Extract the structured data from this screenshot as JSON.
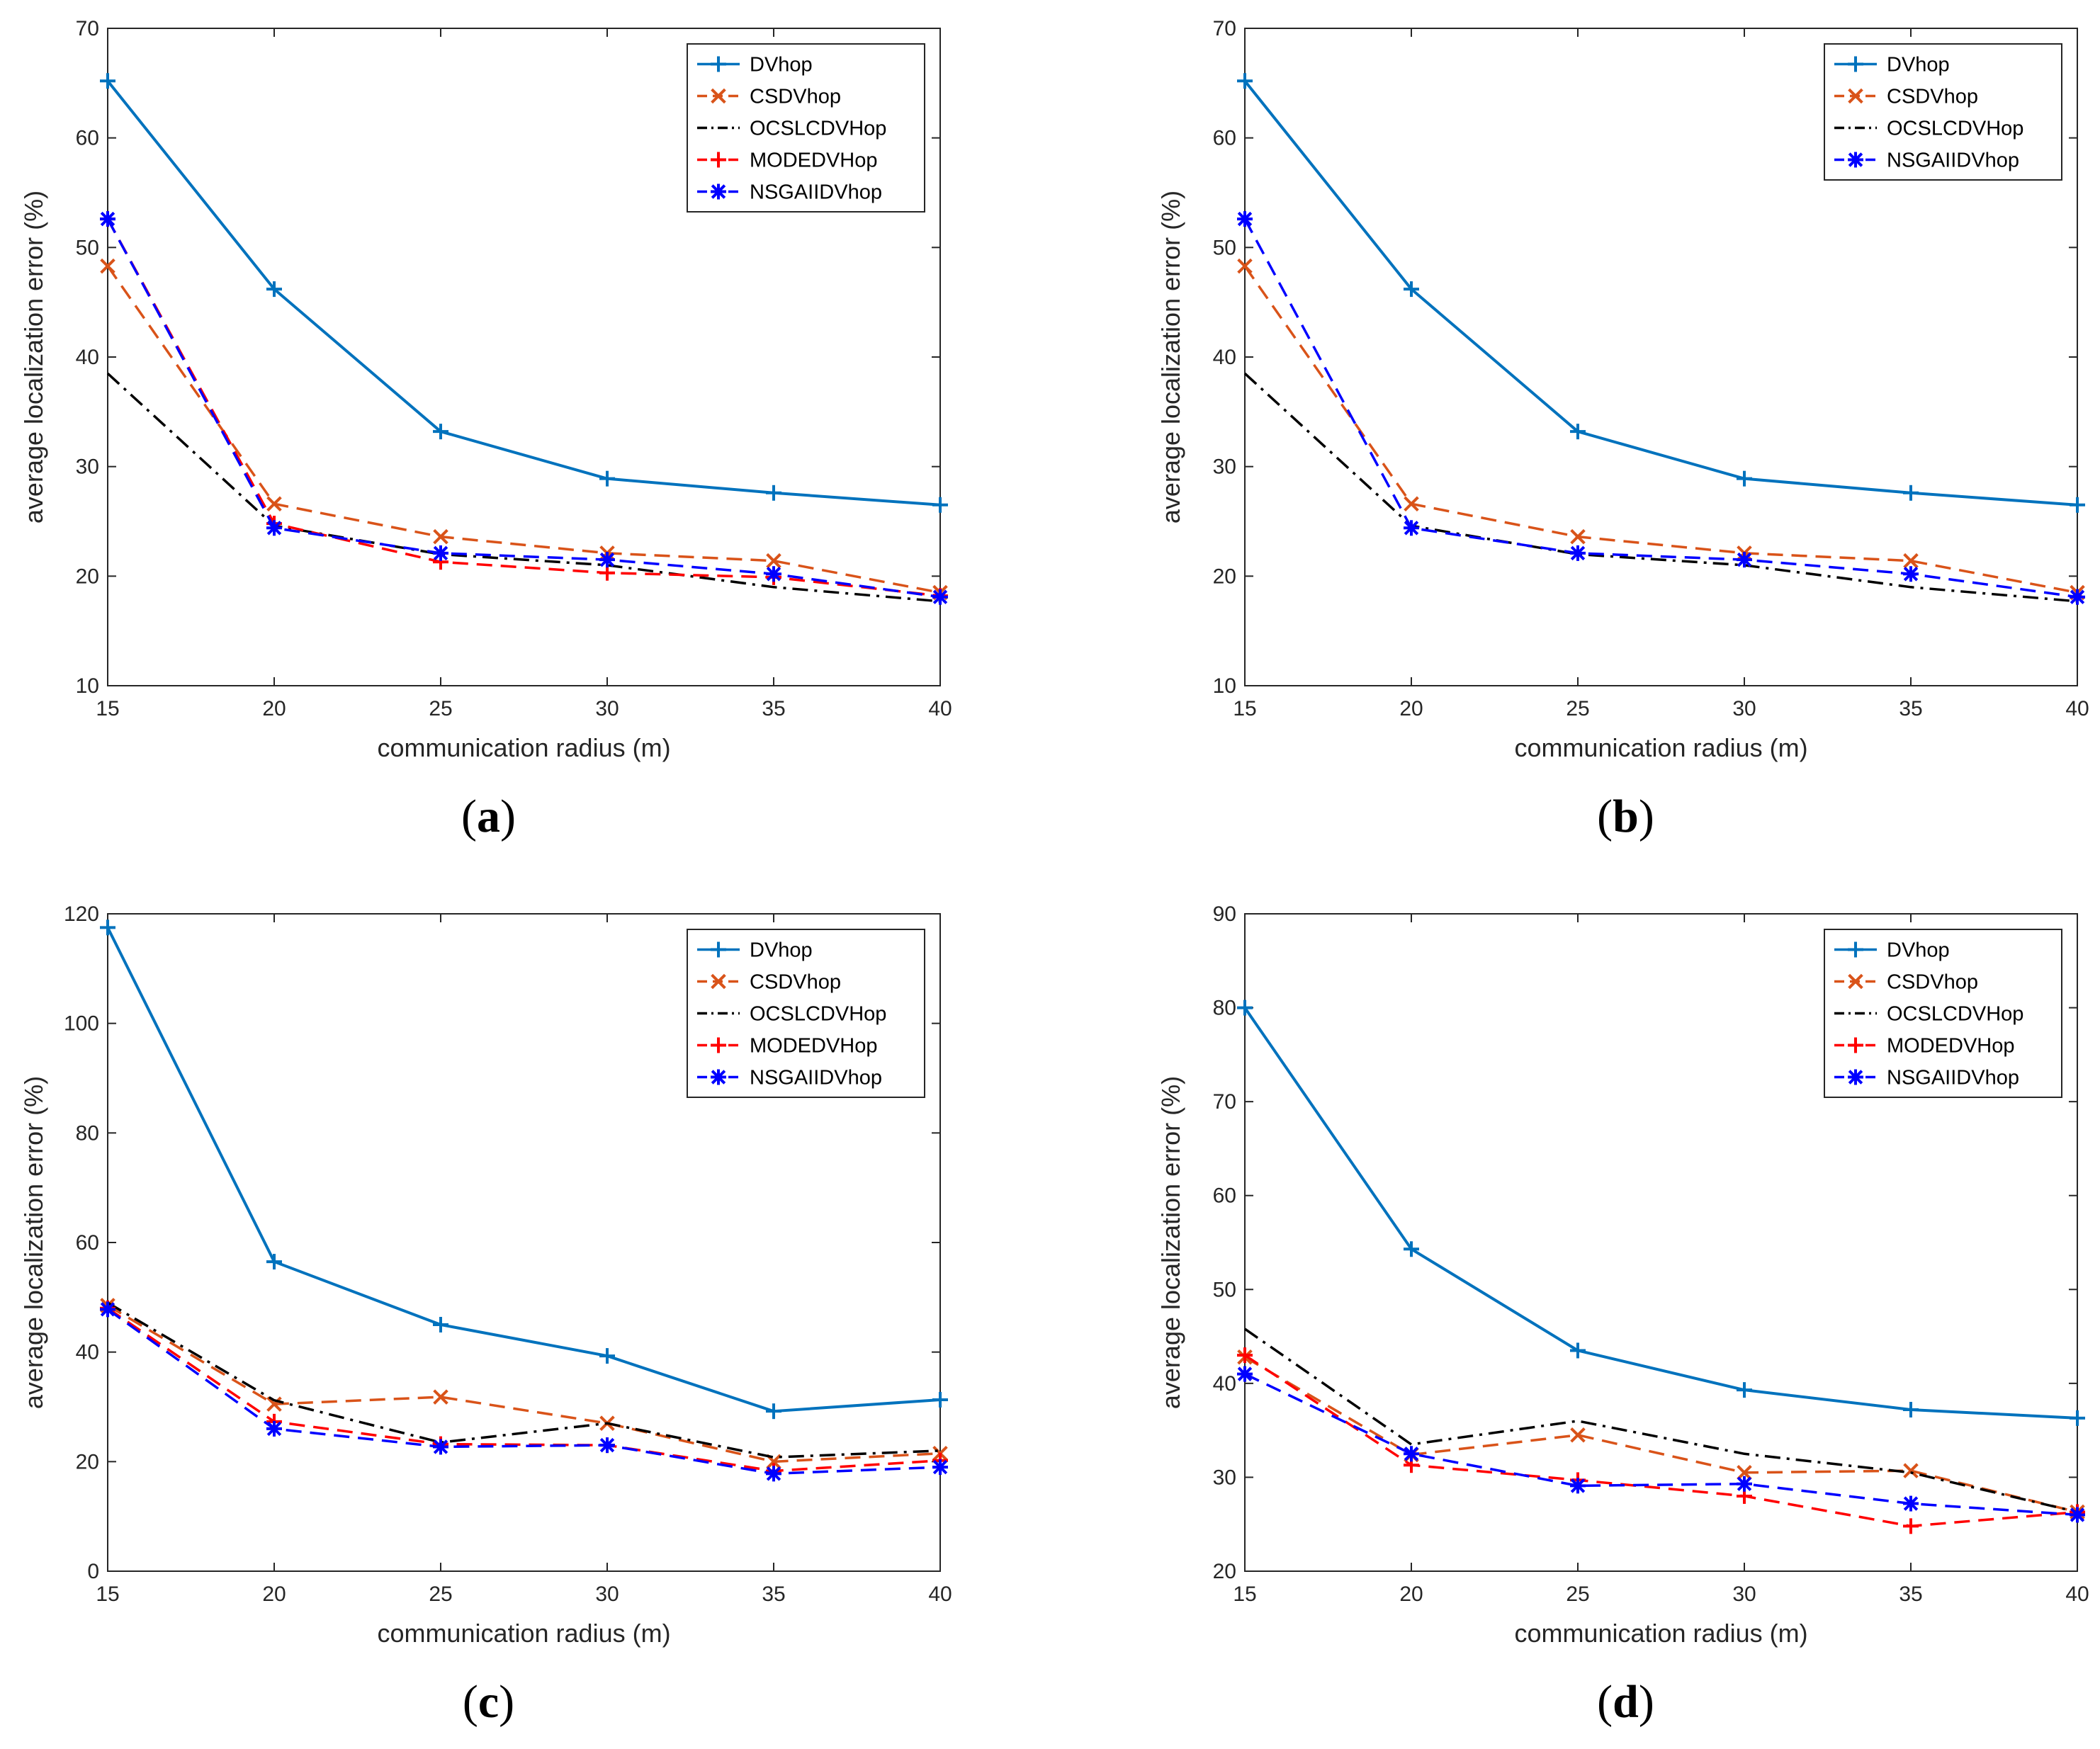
{
  "figure": {
    "panels": [
      "a",
      "b",
      "c",
      "d"
    ]
  },
  "colors": {
    "DVhop": "#0072BD",
    "CSDVhop": "#D95319",
    "OCSLCDVHop": "#000000",
    "MODEDVHop": "#FF0000",
    "NSGAIIDVhop": "#0000FF"
  },
  "chart_data": [
    {
      "type": "line",
      "panel": "a",
      "caption_letter": "a",
      "xlabel": "communication radius (m)",
      "ylabel": "average localization error (%)",
      "x": [
        15,
        20,
        25,
        30,
        35,
        40
      ],
      "xlim": [
        15,
        40
      ],
      "ylim": [
        10,
        70
      ],
      "xticks": [
        15,
        20,
        25,
        30,
        35,
        40
      ],
      "yticks": [
        10,
        20,
        30,
        40,
        50,
        60,
        70
      ],
      "grid": false,
      "legend_position": "top-right",
      "series": [
        {
          "name": "DVhop",
          "style": "solid",
          "marker": "plus",
          "values": [
            65.2,
            46.2,
            33.2,
            28.9,
            27.6,
            26.5
          ]
        },
        {
          "name": "CSDVhop",
          "style": "dashed",
          "marker": "x",
          "values": [
            48.3,
            26.6,
            23.6,
            22.1,
            21.4,
            18.5
          ]
        },
        {
          "name": "OCSLCDVHop",
          "style": "dashdot",
          "marker": "none",
          "values": [
            38.5,
            24.6,
            22.0,
            21.0,
            19.0,
            17.7
          ]
        },
        {
          "name": "MODEDVHop",
          "style": "dashed",
          "marker": "plus",
          "values": [
            52.6,
            24.8,
            21.3,
            20.3,
            19.9,
            18.2
          ]
        },
        {
          "name": "NSGAIIDVhop",
          "style": "dashed",
          "marker": "asterisk",
          "values": [
            52.6,
            24.4,
            22.1,
            21.5,
            20.2,
            18.1
          ]
        }
      ]
    },
    {
      "type": "line",
      "panel": "b",
      "caption_letter": "b",
      "xlabel": "communication radius (m)",
      "ylabel": "average localization error (%)",
      "x": [
        15,
        20,
        25,
        30,
        35,
        40
      ],
      "xlim": [
        15,
        40
      ],
      "ylim": [
        10,
        70
      ],
      "xticks": [
        15,
        20,
        25,
        30,
        35,
        40
      ],
      "yticks": [
        10,
        20,
        30,
        40,
        50,
        60,
        70
      ],
      "grid": false,
      "legend_position": "top-right",
      "series": [
        {
          "name": "DVhop",
          "style": "solid",
          "marker": "plus",
          "values": [
            65.2,
            46.2,
            33.2,
            28.9,
            27.6,
            26.5
          ]
        },
        {
          "name": "CSDVhop",
          "style": "dashed",
          "marker": "x",
          "values": [
            48.3,
            26.6,
            23.6,
            22.1,
            21.4,
            18.5
          ]
        },
        {
          "name": "OCSLCDVHop",
          "style": "dashdot",
          "marker": "none",
          "values": [
            38.5,
            24.6,
            22.0,
            21.0,
            19.0,
            17.7
          ]
        },
        {
          "name": "NSGAIIDVhop",
          "style": "dashed",
          "marker": "asterisk",
          "values": [
            52.6,
            24.4,
            22.1,
            21.5,
            20.2,
            18.1
          ]
        }
      ]
    },
    {
      "type": "line",
      "panel": "c",
      "caption_letter": "c",
      "xlabel": "communication radius (m)",
      "ylabel": "average localization error (%)",
      "x": [
        15,
        20,
        25,
        30,
        35,
        40
      ],
      "xlim": [
        15,
        40
      ],
      "ylim": [
        0,
        120
      ],
      "xticks": [
        15,
        20,
        25,
        30,
        35,
        40
      ],
      "yticks": [
        0,
        20,
        40,
        60,
        80,
        100,
        120
      ],
      "grid": false,
      "legend_position": "top-right",
      "series": [
        {
          "name": "DVhop",
          "style": "solid",
          "marker": "plus",
          "values": [
            117.5,
            56.5,
            45.0,
            39.3,
            29.2,
            31.3
          ]
        },
        {
          "name": "CSDVhop",
          "style": "dashed",
          "marker": "x",
          "values": [
            48.5,
            30.5,
            31.8,
            27.0,
            20.0,
            21.5
          ]
        },
        {
          "name": "OCSLCDVHop",
          "style": "dashdot",
          "marker": "none",
          "values": [
            49.0,
            31.2,
            23.5,
            27.0,
            20.8,
            22.0
          ]
        },
        {
          "name": "MODEDVHop",
          "style": "dashed",
          "marker": "plus",
          "values": [
            48.0,
            27.3,
            23.2,
            23.0,
            18.3,
            20.2
          ]
        },
        {
          "name": "NSGAIIDVhop",
          "style": "dashed",
          "marker": "asterisk",
          "values": [
            47.8,
            26.0,
            22.7,
            23.0,
            17.8,
            19.0
          ]
        }
      ]
    },
    {
      "type": "line",
      "panel": "d",
      "caption_letter": "d",
      "xlabel": "communication radius (m)",
      "ylabel": "average localization error (%)",
      "x": [
        15,
        20,
        25,
        30,
        35,
        40
      ],
      "xlim": [
        15,
        40
      ],
      "ylim": [
        20,
        90
      ],
      "xticks": [
        15,
        20,
        25,
        30,
        35,
        40
      ],
      "yticks": [
        20,
        30,
        40,
        50,
        60,
        70,
        80,
        90
      ],
      "grid": false,
      "legend_position": "top-right",
      "series": [
        {
          "name": "DVhop",
          "style": "solid",
          "marker": "plus",
          "values": [
            80.0,
            54.3,
            43.5,
            39.3,
            37.2,
            36.3
          ]
        },
        {
          "name": "CSDVhop",
          "style": "dashed",
          "marker": "x",
          "values": [
            42.8,
            32.4,
            34.5,
            30.5,
            30.7,
            26.3
          ]
        },
        {
          "name": "OCSLCDVHop",
          "style": "dashdot",
          "marker": "none",
          "values": [
            45.8,
            33.5,
            36.0,
            32.5,
            30.5,
            26.3
          ]
        },
        {
          "name": "MODEDVHop",
          "style": "dashed",
          "marker": "plus",
          "values": [
            43.0,
            31.3,
            29.7,
            28.0,
            24.8,
            26.3
          ]
        },
        {
          "name": "NSGAIIDVhop",
          "style": "dashed",
          "marker": "asterisk",
          "values": [
            41.0,
            32.5,
            29.1,
            29.3,
            27.2,
            26.0
          ]
        }
      ]
    }
  ]
}
